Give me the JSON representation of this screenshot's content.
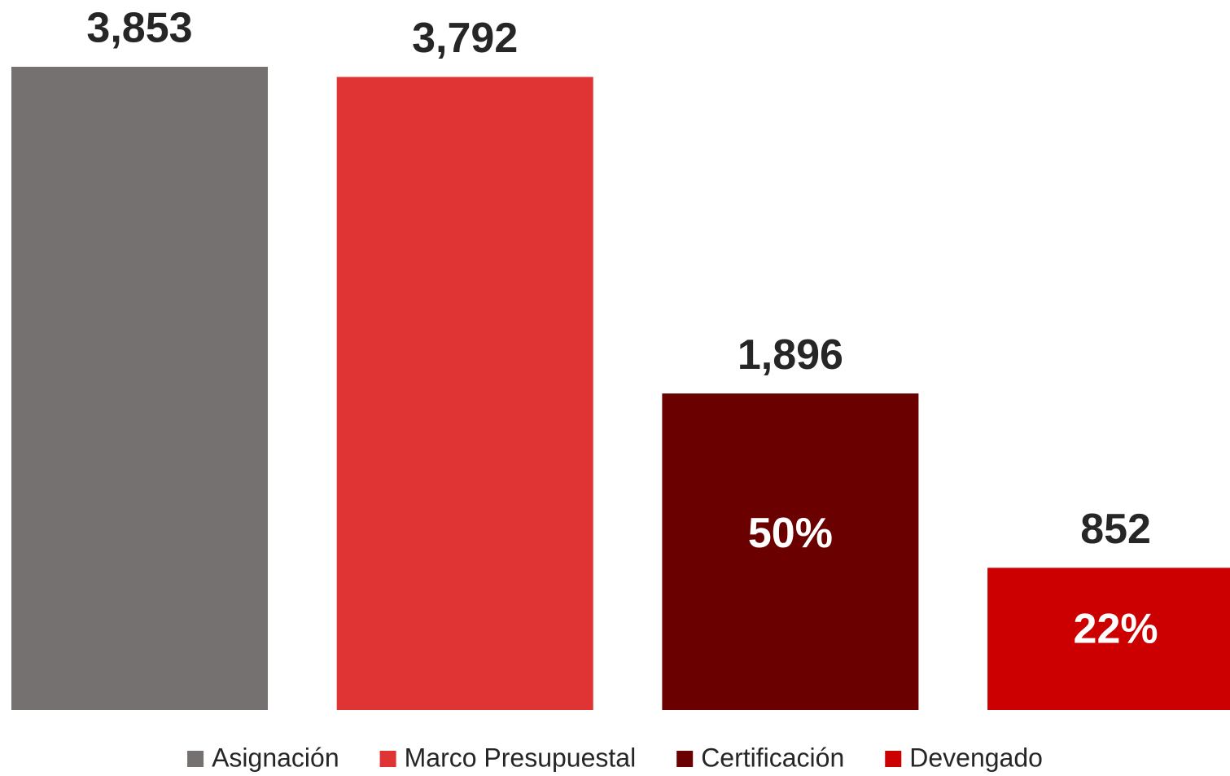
{
  "chart_data": {
    "type": "bar",
    "series": [
      {
        "name": "Asignación",
        "color": "#767171",
        "values": [
          3853
        ],
        "value_labels": [
          "3,853"
        ]
      },
      {
        "name": "Marco Presupuestal",
        "color": "#e03333",
        "values": [
          3792
        ],
        "value_labels": [
          "3,792"
        ]
      },
      {
        "name": "Certificación",
        "color": "#6b0000",
        "values": [
          1896
        ],
        "value_labels": [
          "1,896"
        ],
        "share_label": "50%"
      },
      {
        "name": "Devengado",
        "color": "#cc0000",
        "values": [
          852
        ],
        "value_labels": [
          "852"
        ],
        "share_label": "22%"
      }
    ],
    "ylim": [
      0,
      3853
    ],
    "legend": "bottom"
  }
}
